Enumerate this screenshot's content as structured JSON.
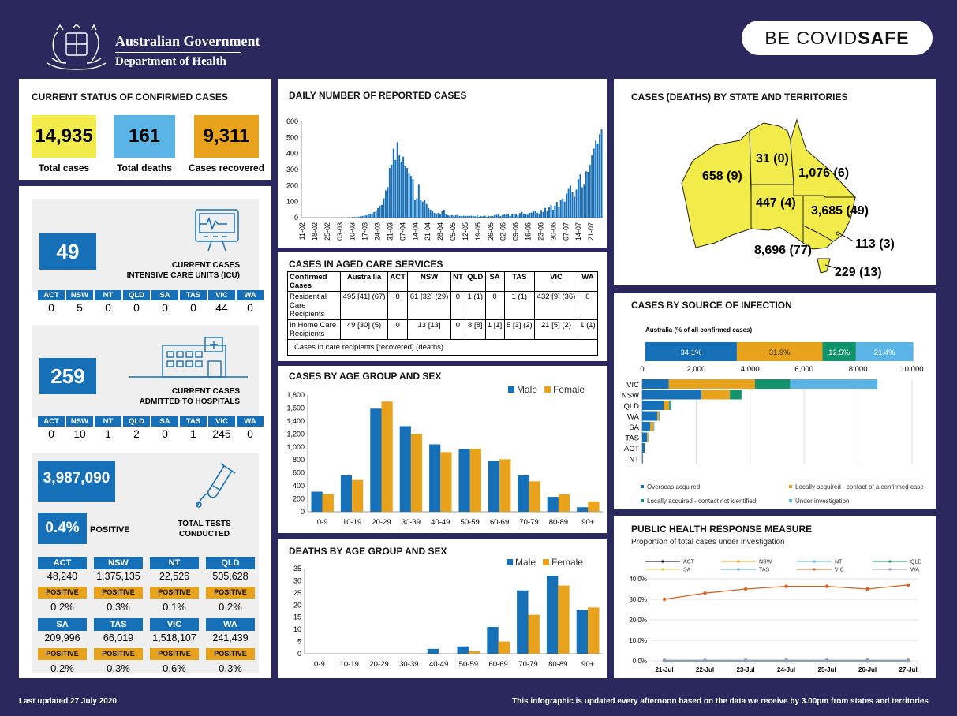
{
  "header": {
    "gov_line1": "Australian Government",
    "gov_line2": "Department of Health",
    "covid_prefix": "BE COVID",
    "covid_suffix": "SAFE"
  },
  "status": {
    "title": "CURRENT STATUS OF CONFIRMED CASES",
    "total_cases": "14,935",
    "total_cases_label": "Total cases",
    "total_deaths": "161",
    "total_deaths_label": "Total deaths",
    "recovered": "9,311",
    "recovered_label": "Cases recovered",
    "colors": {
      "cases": "#f2ec4b",
      "deaths": "#5ab4e5",
      "recovered": "#e8a21b"
    }
  },
  "icu": {
    "value": "49",
    "caption_line1": "CURRENT CASES",
    "caption_line2": "INTENSIVE CARE UNITS (ICU)",
    "states": [
      {
        "s": "ACT",
        "v": "0"
      },
      {
        "s": "NSW",
        "v": "5"
      },
      {
        "s": "NT",
        "v": "0"
      },
      {
        "s": "QLD",
        "v": "0"
      },
      {
        "s": "SA",
        "v": "0"
      },
      {
        "s": "TAS",
        "v": "0"
      },
      {
        "s": "VIC",
        "v": "44"
      },
      {
        "s": "WA",
        "v": "0"
      }
    ]
  },
  "hospital": {
    "value": "259",
    "caption_line1": "CURRENT CASES",
    "caption_line2": "ADMITTED TO HOSPITALS",
    "states": [
      {
        "s": "ACT",
        "v": "0"
      },
      {
        "s": "NSW",
        "v": "10"
      },
      {
        "s": "NT",
        "v": "1"
      },
      {
        "s": "QLD",
        "v": "2"
      },
      {
        "s": "SA",
        "v": "0"
      },
      {
        "s": "TAS",
        "v": "1"
      },
      {
        "s": "VIC",
        "v": "245"
      },
      {
        "s": "WA",
        "v": "0"
      }
    ]
  },
  "tests": {
    "total": "3,987,090",
    "positive_pct": "0.4%",
    "positive_label": "POSITIVE",
    "caption_line1": "TOTAL TESTS",
    "caption_line2": "CONDUCTED",
    "pos_tag": "POSITIVE",
    "states": [
      {
        "s": "ACT",
        "n": "48,240",
        "p": "0.2%"
      },
      {
        "s": "NSW",
        "n": "1,375,135",
        "p": "0.3%"
      },
      {
        "s": "NT",
        "n": "22,526",
        "p": "0.1%"
      },
      {
        "s": "QLD",
        "n": "505,628",
        "p": "0.2%"
      },
      {
        "s": "SA",
        "n": "209,996",
        "p": "0.2%"
      },
      {
        "s": "TAS",
        "n": "66,019",
        "p": "0.3%"
      },
      {
        "s": "VIC",
        "n": "1,518,107",
        "p": "0.6%"
      },
      {
        "s": "WA",
        "n": "241,439",
        "p": "0.3%"
      }
    ]
  },
  "aged_care": {
    "title": "CASES IN AGED CARE SERVICES",
    "headers": [
      "Confirmed Cases",
      "Austra lia",
      "ACT",
      "NSW",
      "NT",
      "QLD",
      "SA",
      "TAS",
      "VIC",
      "WA"
    ],
    "rows": [
      [
        "Residential Care Recipients",
        "495 [41] (67)",
        "0",
        "61 [32] (29)",
        "0",
        "1 (1)",
        "0",
        "1 (1)",
        "432 [9] (36)",
        "0"
      ],
      [
        "In Home Care Recipients",
        "49 [30] (5)",
        "0",
        "13 [13]",
        "0",
        "8 [8]",
        "1 [1]",
        "5 [3] (2)",
        "21 [5] (2)",
        "1 (1)"
      ]
    ],
    "note": "Cases in care recipients [recovered] (deaths)"
  },
  "state_map": {
    "title": "CASES (DEATHS) BY STATE AND TERRITORIES",
    "labels": {
      "WA": "658 (9)",
      "NT": "31 (0)",
      "QLD": "1,076 (6)",
      "SA": "447 (4)",
      "NSW": "3,685 (49)",
      "ACT": "113 (3)",
      "VIC": "8,696 (77)",
      "TAS": "229 (13)"
    }
  },
  "footer": {
    "left": "Last updated 27 July 2020",
    "right": "This infographic is updated every afternoon based on the data we receive by 3.00pm from states and territories"
  },
  "chart_data": [
    {
      "id": "daily",
      "type": "bar",
      "title": "DAILY NUMBER OF REPORTED CASES",
      "ylim": [
        0,
        600
      ],
      "yticks": [
        0,
        100,
        200,
        300,
        400,
        500,
        600
      ],
      "xtick_labels": [
        "11-02",
        "18-02",
        "25-02",
        "03-03",
        "10-03",
        "17-03",
        "24-03",
        "31-03",
        "07-04",
        "14-04",
        "21-04",
        "28-04",
        "05-05",
        "12-05",
        "19-05",
        "26-05",
        "02-06",
        "09-06",
        "16-06",
        "23-06",
        "30-06",
        "07-07",
        "14-07",
        "21-07"
      ],
      "values": [
        0,
        0,
        0,
        0,
        0,
        0,
        0,
        0,
        0,
        0,
        0,
        0,
        0,
        1,
        0,
        0,
        0,
        0,
        0,
        0,
        1,
        0,
        2,
        1,
        3,
        2,
        5,
        4,
        3,
        6,
        8,
        10,
        12,
        15,
        20,
        25,
        27,
        35,
        40,
        60,
        75,
        80,
        120,
        170,
        190,
        310,
        330,
        430,
        360,
        470,
        390,
        350,
        380,
        320,
        310,
        280,
        260,
        240,
        110,
        120,
        210,
        110,
        100,
        110,
        85,
        60,
        50,
        45,
        30,
        20,
        30,
        20,
        40,
        50,
        20,
        15,
        12,
        15,
        12,
        15,
        18,
        10,
        10,
        12,
        10,
        11,
        11,
        12,
        10,
        8,
        15,
        5,
        10,
        8,
        12,
        5,
        10,
        8,
        10,
        15,
        18,
        22,
        10,
        15,
        20,
        18,
        25,
        10,
        22,
        25,
        20,
        15,
        28,
        35,
        20,
        25,
        18,
        30,
        32,
        40,
        45,
        30,
        25,
        48,
        35,
        60,
        40,
        65,
        80,
        50,
        75,
        98,
        65,
        110,
        120,
        100,
        150,
        180,
        200,
        160,
        130,
        175,
        240,
        270,
        190,
        210,
        290,
        285,
        330,
        390,
        430,
        480,
        460,
        520,
        550
      ]
    },
    {
      "id": "age_cases",
      "type": "bar",
      "title": "CASES BY AGE GROUP AND SEX",
      "ylim": [
        0,
        1800
      ],
      "yticks": [
        0,
        200,
        400,
        600,
        800,
        1000,
        1200,
        1400,
        1600,
        1800
      ],
      "ytick_labels": [
        "0",
        "200",
        "400",
        "600",
        "800",
        "1,000",
        "1,200",
        "1,400",
        "1,600",
        "1,800"
      ],
      "categories": [
        "0-9",
        "10-19",
        "20-29",
        "30-39",
        "40-49",
        "50-59",
        "60-69",
        "70-79",
        "80-89",
        "90+"
      ],
      "series": [
        {
          "name": "Male",
          "color": "#1670b8",
          "values": [
            310,
            560,
            1590,
            1320,
            1040,
            970,
            790,
            560,
            230,
            70
          ]
        },
        {
          "name": "Female",
          "color": "#e8a21b",
          "values": [
            270,
            490,
            1700,
            1200,
            920,
            970,
            810,
            470,
            270,
            160
          ]
        }
      ],
      "legend": "top-right"
    },
    {
      "id": "age_deaths",
      "type": "bar",
      "title": "DEATHS BY AGE GROUP AND SEX",
      "ylim": [
        0,
        35
      ],
      "yticks": [
        0,
        5,
        10,
        15,
        20,
        25,
        30,
        35
      ],
      "categories": [
        "0-9",
        "10-19",
        "20-29",
        "30-39",
        "40-49",
        "50-59",
        "60-69",
        "70-79",
        "80-89",
        "90+"
      ],
      "series": [
        {
          "name": "Male",
          "color": "#1670b8",
          "values": [
            0,
            0,
            0,
            0,
            2,
            3,
            11,
            26,
            32,
            18
          ]
        },
        {
          "name": "Female",
          "color": "#e8a21b",
          "values": [
            0,
            0,
            0,
            0,
            0,
            1,
            5,
            16,
            28,
            19
          ]
        }
      ],
      "legend": "top-right"
    },
    {
      "id": "source",
      "type": "bar",
      "title": "CASES BY SOURCE OF INFECTION",
      "subtitle": "Australia (% of all confirmed cases)",
      "australia_pct": [
        {
          "label": "34.1%",
          "value": 34.1,
          "color": "#1670b8"
        },
        {
          "label": "31.9%",
          "value": 31.9,
          "color": "#e8a21b"
        },
        {
          "label": "12.5%",
          "value": 12.5,
          "color": "#12946a"
        },
        {
          "label": "21.4%",
          "value": 21.4,
          "color": "#5ab4e5"
        }
      ],
      "xlim": [
        0,
        10000
      ],
      "xticks": [
        0,
        2000,
        4000,
        6000,
        8000,
        10000
      ],
      "xtick_labels": [
        "0",
        "2,000",
        "4,000",
        "6,000",
        "8,000",
        "10,000"
      ],
      "categories": [
        "VIC",
        "NSW",
        "QLD",
        "WA",
        "SA",
        "TAS",
        "ACT",
        "NT"
      ],
      "series": [
        {
          "name": "Overseas acquired",
          "color": "#1670b8",
          "values": [
            980,
            2200,
            800,
            560,
            300,
            180,
            90,
            25
          ]
        },
        {
          "name": "Locally acquired - contact of a confirmed case",
          "color": "#e8a21b",
          "values": [
            3200,
            1050,
            200,
            60,
            120,
            40,
            20,
            5
          ]
        },
        {
          "name": "Locally acquired - contact not identified",
          "color": "#12946a",
          "values": [
            1300,
            430,
            40,
            10,
            10,
            5,
            3,
            1
          ]
        },
        {
          "name": "Under investigation",
          "color": "#5ab4e5",
          "values": [
            3240,
            10,
            30,
            20,
            20,
            5,
            0,
            0
          ]
        }
      ],
      "legend": "bottom"
    },
    {
      "id": "response",
      "type": "line",
      "title": "PUBLIC HEALTH RESPONSE MEASURE",
      "subtitle": "Proportion of total cases under investigation",
      "ylim": [
        0,
        40
      ],
      "yticks": [
        0,
        10,
        20,
        30,
        40
      ],
      "ytick_labels": [
        "0.0%",
        "10.0%",
        "20.0%",
        "30.0%",
        "40.0%"
      ],
      "x": [
        "21-Jul",
        "22-Jul",
        "23-Jul",
        "24-Jul",
        "25-Jul",
        "26-Jul",
        "27-Jul"
      ],
      "series": [
        {
          "name": "ACT",
          "color": "#000000",
          "values": [
            0,
            0,
            0,
            0,
            0,
            0,
            0
          ]
        },
        {
          "name": "NSW",
          "color": "#e8a21b",
          "values": [
            0.2,
            0.2,
            0.2,
            0.2,
            0.2,
            0.2,
            0.2
          ]
        },
        {
          "name": "NT",
          "color": "#5ab4e5",
          "values": [
            0,
            0,
            0,
            0,
            0,
            0,
            0
          ]
        },
        {
          "name": "QLD",
          "color": "#12946a",
          "values": [
            0.1,
            0.1,
            0.1,
            0.1,
            0.1,
            0.1,
            0.1
          ]
        },
        {
          "name": "SA",
          "color": "#d8d24a",
          "values": [
            0,
            0,
            0,
            0,
            0,
            0,
            0
          ]
        },
        {
          "name": "TAS",
          "color": "#5aa0c8",
          "values": [
            0,
            0,
            0,
            0,
            0,
            0,
            0
          ]
        },
        {
          "name": "VIC",
          "color": "#d9611f",
          "values": [
            30,
            33,
            35,
            36.3,
            36.3,
            35,
            37
          ]
        },
        {
          "name": "WA",
          "color": "#9a9ab0",
          "values": [
            0.3,
            0.3,
            0.3,
            0.3,
            0.3,
            0.3,
            0.3
          ]
        }
      ],
      "legend": "top"
    }
  ]
}
